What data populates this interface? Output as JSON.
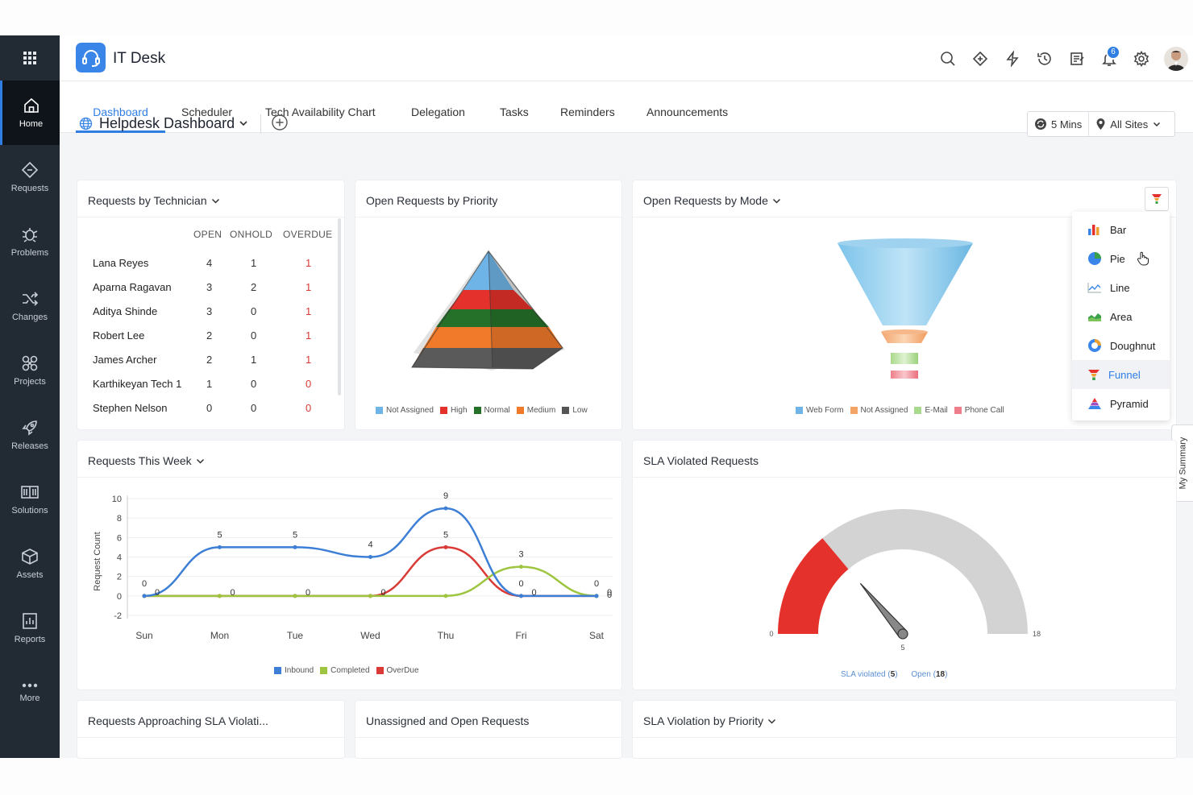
{
  "header": {
    "title": "IT Desk",
    "notification_count": "6"
  },
  "sidebar": {
    "items": [
      {
        "label": "Home",
        "icon": "home-icon"
      },
      {
        "label": "Requests",
        "icon": "requests-icon"
      },
      {
        "label": "Problems",
        "icon": "problems-icon"
      },
      {
        "label": "Changes",
        "icon": "changes-icon"
      },
      {
        "label": "Projects",
        "icon": "projects-icon"
      },
      {
        "label": "Releases",
        "icon": "releases-icon"
      },
      {
        "label": "Solutions",
        "icon": "solutions-icon"
      },
      {
        "label": "Assets",
        "icon": "assets-icon"
      },
      {
        "label": "Reports",
        "icon": "reports-icon"
      },
      {
        "label": "More",
        "icon": "more-icon"
      }
    ]
  },
  "tabs": [
    {
      "label": "Dashboard",
      "active": true
    },
    {
      "label": "Scheduler"
    },
    {
      "label": "Tech Availability Chart"
    },
    {
      "label": "Delegation"
    },
    {
      "label": "Tasks"
    },
    {
      "label": "Reminders"
    },
    {
      "label": "Announcements"
    }
  ],
  "dashboard": {
    "title": "Helpdesk Dashboard",
    "refresh": "5 Mins",
    "sites": "All Sites"
  },
  "cards": {
    "technician": {
      "title": "Requests by Technician",
      "columns": [
        "OPEN",
        "ONHOLD",
        "OVERDUE"
      ],
      "rows": [
        {
          "name": "Lana Reyes",
          "open": "4",
          "onhold": "1",
          "overdue": "1"
        },
        {
          "name": "Aparna Ragavan",
          "open": "3",
          "onhold": "2",
          "overdue": "1"
        },
        {
          "name": "Aditya Shinde",
          "open": "3",
          "onhold": "0",
          "overdue": "1"
        },
        {
          "name": "Robert Lee",
          "open": "2",
          "onhold": "0",
          "overdue": "1"
        },
        {
          "name": "James Archer",
          "open": "2",
          "onhold": "1",
          "overdue": "1"
        },
        {
          "name": "Karthikeyan Tech 1",
          "open": "1",
          "onhold": "0",
          "overdue": "0"
        },
        {
          "name": "Stephen Nelson",
          "open": "0",
          "onhold": "0",
          "overdue": "0"
        }
      ]
    },
    "priority": {
      "title": "Open Requests by Priority",
      "legend": [
        {
          "label": "Not Assigned",
          "color": "#6fb4e6"
        },
        {
          "label": "High",
          "color": "#e5312b"
        },
        {
          "label": "Normal",
          "color": "#26712a"
        },
        {
          "label": "Medium",
          "color": "#f07a2a"
        },
        {
          "label": "Low",
          "color": "#555555"
        }
      ]
    },
    "mode": {
      "title": "Open Requests by Mode",
      "legend": [
        {
          "label": "Web Form",
          "color": "#6fb4e6"
        },
        {
          "label": "Not Assigned",
          "color": "#f2a566"
        },
        {
          "label": "E-Mail",
          "color": "#a9d98c"
        },
        {
          "label": "Phone Call",
          "color": "#ee7f8a"
        }
      ],
      "menu": [
        {
          "label": "Bar",
          "icon": "bar-chart-icon"
        },
        {
          "label": "Pie",
          "icon": "pie-chart-icon"
        },
        {
          "label": "Line",
          "icon": "line-chart-icon"
        },
        {
          "label": "Area",
          "icon": "area-chart-icon"
        },
        {
          "label": "Doughnut",
          "icon": "doughnut-chart-icon"
        },
        {
          "label": "Funnel",
          "icon": "funnel-chart-icon",
          "active": true
        },
        {
          "label": "Pyramid",
          "icon": "pyramid-chart-icon"
        }
      ]
    },
    "week": {
      "title": "Requests This Week"
    },
    "sla": {
      "title": "SLA Violated Requests",
      "legend_violated": "SLA violated",
      "violated_value": "5",
      "legend_open": "Open",
      "open_value": "18",
      "min_label": "0",
      "max_label": "18",
      "needle_label": "5"
    },
    "approaching": {
      "title": "Requests Approaching SLA Violati..."
    },
    "unassigned": {
      "title": "Unassigned and Open Requests"
    },
    "sla_priority": {
      "title": "SLA Violation by Priority"
    }
  },
  "my_summary": "My Summary",
  "chart_data": [
    {
      "type": "line",
      "title": "Requests This Week",
      "ylabel": "Request Count",
      "xlabel": "",
      "categories": [
        "Sun",
        "Mon",
        "Tue",
        "Wed",
        "Thu",
        "Fri",
        "Sat"
      ],
      "yticks": [
        -2,
        0,
        2,
        4,
        6,
        8,
        10
      ],
      "ylim": [
        -2,
        10
      ],
      "series": [
        {
          "name": "Inbound",
          "color": "#3d7fd6",
          "values": [
            0,
            5,
            5,
            4,
            9,
            0,
            0
          ]
        },
        {
          "name": "Completed",
          "color": "#9dc53f",
          "values": [
            0,
            0,
            0,
            0,
            0,
            3,
            0
          ]
        },
        {
          "name": "OverDue",
          "color": "#d93a35",
          "values": [
            0,
            0,
            0,
            0,
            5,
            0,
            0
          ]
        }
      ]
    },
    {
      "type": "gauge",
      "title": "SLA Violated Requests",
      "min": 0,
      "max": 18,
      "value": 5
    }
  ]
}
